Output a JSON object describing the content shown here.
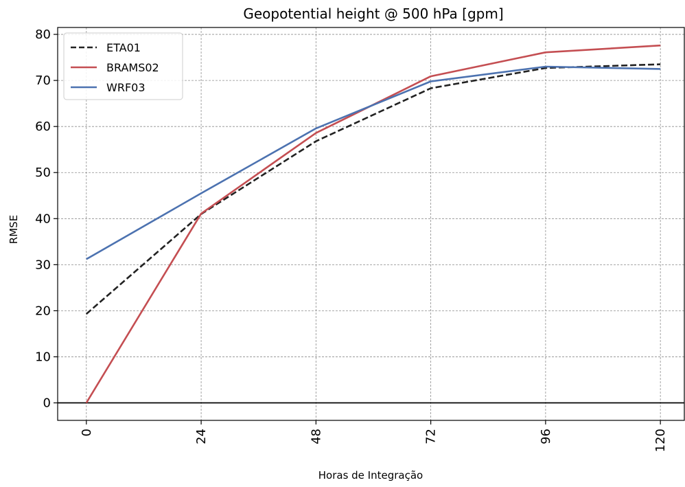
{
  "chart_data": {
    "type": "line",
    "title": "Geopotential height @ 500 hPa [gpm]",
    "xlabel": "Horas de Integração",
    "ylabel": "RMSE",
    "x": [
      0,
      24,
      48,
      72,
      96,
      120
    ],
    "x_tick_labels": [
      "0",
      "24",
      "48",
      "72",
      "96",
      "120"
    ],
    "y_ticks": [
      0,
      10,
      20,
      30,
      40,
      50,
      60,
      70,
      80
    ],
    "y_tick_labels": [
      "0",
      "10",
      "20",
      "30",
      "40",
      "50",
      "60",
      "70",
      "80"
    ],
    "xlim": [
      -6,
      125
    ],
    "ylim": [
      -3.8,
      81.5
    ],
    "grid": true,
    "legend_position": "top-left",
    "reference_line_y": 0,
    "series": [
      {
        "name": "ETA01",
        "values": [
          19.3,
          41.0,
          56.8,
          68.3,
          72.7,
          73.5
        ],
        "color": "#222222",
        "dash": true
      },
      {
        "name": "BRAMS02",
        "values": [
          0.0,
          41.1,
          58.6,
          70.9,
          76.1,
          77.6
        ],
        "color": "#c44e52",
        "dash": false
      },
      {
        "name": "WRF03",
        "values": [
          31.2,
          45.5,
          59.6,
          69.8,
          73.0,
          72.5
        ],
        "color": "#4c72b0",
        "dash": false
      }
    ]
  }
}
